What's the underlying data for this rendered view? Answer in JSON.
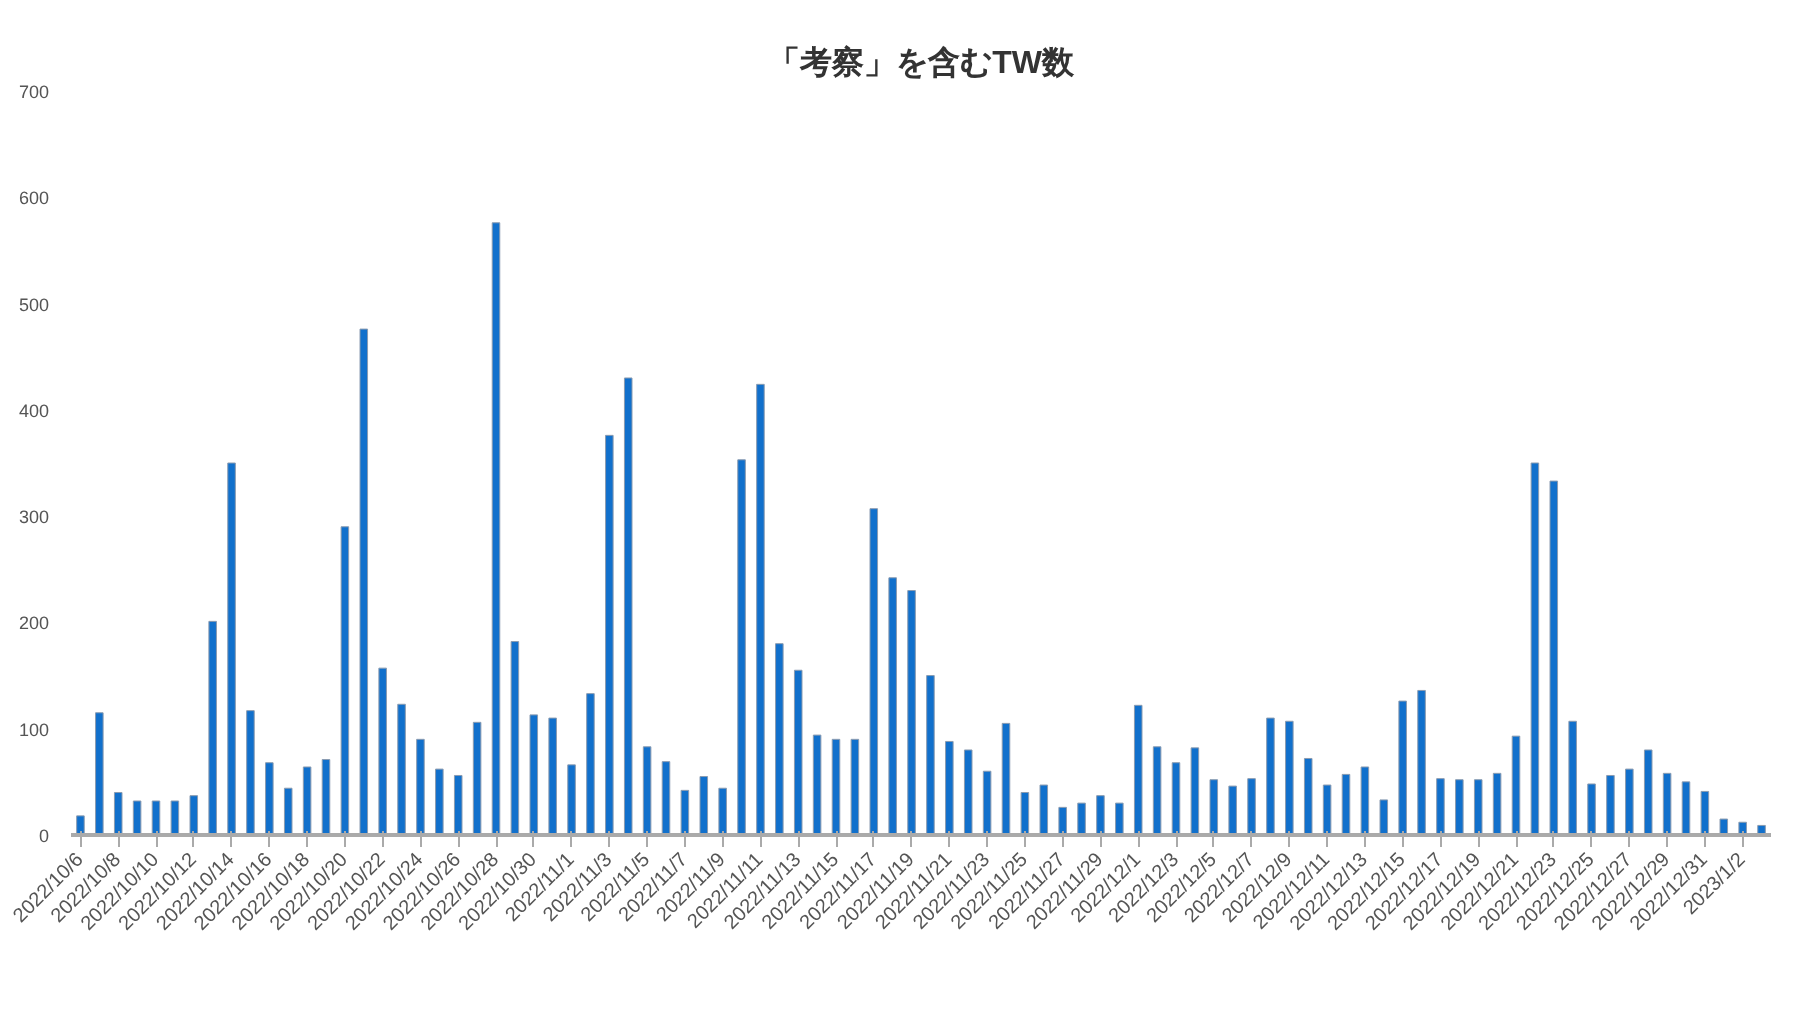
{
  "chart_data": {
    "type": "bar",
    "title": "「考察」を含むTW数",
    "categories": [
      "2022/10/6",
      null,
      "2022/10/8",
      null,
      "2022/10/10",
      null,
      "2022/10/12",
      null,
      "2022/10/14",
      null,
      "2022/10/16",
      null,
      "2022/10/18",
      null,
      "2022/10/20",
      null,
      "2022/10/22",
      null,
      "2022/10/24",
      null,
      "2022/10/26",
      null,
      "2022/10/28",
      null,
      "2022/10/30",
      null,
      "2022/11/1",
      null,
      "2022/11/3",
      null,
      "2022/11/5",
      null,
      "2022/11/7",
      null,
      "2022/11/9",
      null,
      "2022/11/11",
      null,
      "2022/11/13",
      null,
      "2022/11/15",
      null,
      "2022/11/17",
      null,
      "2022/11/19",
      null,
      "2022/11/21",
      null,
      "2022/11/23",
      null,
      "2022/11/25",
      null,
      "2022/11/27",
      null,
      "2022/11/29",
      null,
      "2022/12/1",
      null,
      "2022/12/3",
      null,
      "2022/12/5",
      null,
      "2022/12/7",
      null,
      "2022/12/9",
      null,
      "2022/12/11",
      null,
      "2022/12/13",
      null,
      "2022/12/15",
      null,
      "2022/12/17",
      null,
      "2022/12/19",
      null,
      "2022/12/21",
      null,
      "2022/12/23",
      null,
      "2022/12/25",
      null,
      "2022/12/27",
      null,
      "2022/12/29",
      null,
      "2022/12/31",
      null,
      "2023/1/2",
      null
    ],
    "values": [
      18,
      115,
      40,
      32,
      32,
      32,
      37,
      201,
      350,
      117,
      68,
      44,
      64,
      71,
      290,
      476,
      157,
      123,
      90,
      62,
      56,
      106,
      576,
      182,
      113,
      110,
      66,
      133,
      376,
      430,
      83,
      69,
      42,
      55,
      44,
      353,
      424,
      180,
      155,
      94,
      90,
      90,
      307,
      242,
      230,
      150,
      88,
      80,
      60,
      105,
      40,
      47,
      26,
      30,
      37,
      30,
      122,
      83,
      68,
      82,
      52,
      46,
      53,
      110,
      107,
      72,
      47,
      57,
      64,
      33,
      126,
      136,
      53,
      52,
      52,
      58,
      93,
      350,
      333,
      107,
      48,
      56,
      62,
      80,
      58,
      50,
      41,
      15,
      12,
      9
    ],
    "color": "#1170cc",
    "ylim": [
      0,
      700
    ],
    "yticks": [
      0,
      100,
      200,
      300,
      400,
      500,
      600,
      700
    ],
    "grid": false
  }
}
